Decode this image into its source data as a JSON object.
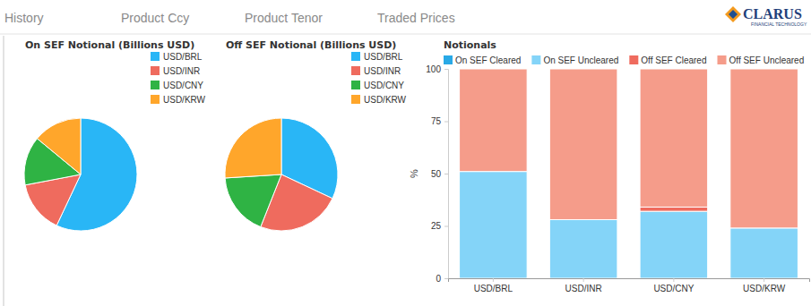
{
  "header": {
    "tabs": [
      "History",
      "Product Ccy",
      "Product Tenor",
      "Traded Prices"
    ],
    "logo": "CLARUS",
    "logo_sub": "FINANCIAL TECHNOLOGY"
  },
  "chart_data": [
    {
      "type": "pie",
      "title": "On SEF Notional (Billions USD)",
      "categories": [
        "USD/BRL",
        "USD/INR",
        "USD/CNY",
        "USD/KRW"
      ],
      "values": [
        57,
        15,
        14,
        14
      ],
      "colors": [
        "#29b6f6",
        "#ef6b5e",
        "#2fb344",
        "#ffa62b"
      ],
      "legend": "right"
    },
    {
      "type": "pie",
      "title": "Off SEF Notional (Billions USD)",
      "categories": [
        "USD/BRL",
        "USD/INR",
        "USD/CNY",
        "USD/KRW"
      ],
      "values": [
        32,
        24,
        18,
        26
      ],
      "colors": [
        "#29b6f6",
        "#ef6b5e",
        "#2fb344",
        "#ffa62b"
      ],
      "legend": "right"
    },
    {
      "type": "bar",
      "title": "Notionals",
      "ylabel": "%",
      "categories": [
        "USD/BRL",
        "USD/INR",
        "USD/CNY",
        "USD/KRW"
      ],
      "series": [
        {
          "name": "On SEF Cleared",
          "color": "#29a9e6",
          "values": [
            0,
            0,
            0,
            0
          ]
        },
        {
          "name": "On SEF Uncleared",
          "color": "#84d4f8",
          "values": [
            51,
            28,
            32,
            24
          ]
        },
        {
          "name": "Off SEF Cleared",
          "color": "#ef6b5e",
          "values": [
            0,
            0,
            2,
            0
          ]
        },
        {
          "name": "Off SEF Uncleared",
          "color": "#f59c8a",
          "values": [
            49,
            72,
            66,
            76
          ]
        }
      ],
      "stacked": true,
      "ylim": [
        0,
        100
      ],
      "yticks": [
        0,
        25,
        50,
        75,
        100
      ],
      "legend": "top"
    }
  ]
}
